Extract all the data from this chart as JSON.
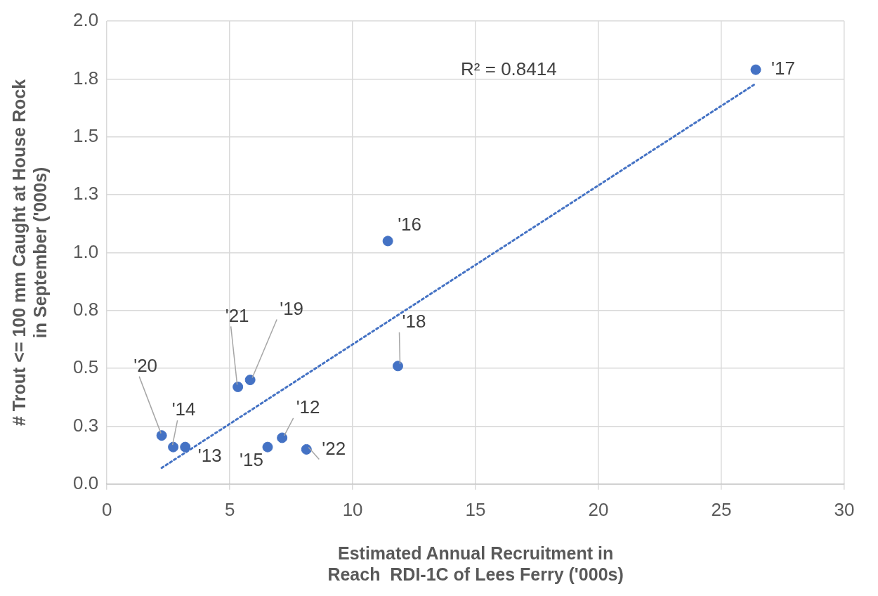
{
  "chart_data": {
    "type": "scatter",
    "xlabel": [
      "Estimated Annual Recruitment in",
      "Reach  RDI-1C of Lees Ferry ('000s)"
    ],
    "ylabel": [
      "# Trout <= 100 mm Caught at House Rock",
      "in September ('000s)"
    ],
    "x": [
      26.4,
      11.43,
      11.84,
      5.83,
      5.33,
      2.23,
      2.7,
      3.19,
      6.54,
      7.13,
      8.12
    ],
    "series": [
      {
        "color": "#4472c4",
        "values": [
          1.79,
          1.05,
          0.51,
          0.45,
          0.42,
          0.21,
          0.16,
          0.16,
          0.16,
          0.2,
          0.15
        ]
      },
      {
        "type": "line",
        "color": "#4472c4",
        "line_style": "dotted",
        "marker": "none",
        "x": [
          2.23,
          26.4
        ],
        "values": [
          0.07,
          1.73
        ]
      }
    ],
    "marker": "circle",
    "xlim": [
      0,
      30
    ],
    "xticks": [
      0,
      5,
      10,
      15,
      20,
      25,
      30
    ],
    "ylim": [
      0,
      2
    ],
    "yticks": [
      {
        "value": 0,
        "label": "0.0"
      },
      {
        "value": 0.25,
        "label": "0.3"
      },
      {
        "value": 0.5,
        "label": "0.5"
      },
      {
        "value": 0.75,
        "label": "0.8"
      },
      {
        "value": 1,
        "label": "1.0"
      },
      {
        "value": 1.25,
        "label": "1.3"
      },
      {
        "value": 1.5,
        "label": "1.5"
      },
      {
        "value": 1.75,
        "label": "1.8"
      },
      {
        "value": 2,
        "label": "2.0"
      }
    ],
    "grid": true,
    "legend": false,
    "annotations": [
      {
        "text": "'17",
        "x": 26.4,
        "y": 1.79
      },
      {
        "text": "'16",
        "x": 11.43,
        "y": 1.05
      },
      {
        "text": "'18",
        "x": 11.84,
        "y": 0.51
      },
      {
        "text": "'19",
        "x": 5.83,
        "y": 0.45
      },
      {
        "text": "'21",
        "x": 5.33,
        "y": 0.42
      },
      {
        "text": "'20",
        "x": 2.23,
        "y": 0.21
      },
      {
        "text": "'14",
        "x": 2.7,
        "y": 0.16
      },
      {
        "text": "'13",
        "x": 3.19,
        "y": 0.16
      },
      {
        "text": "'15",
        "x": 6.54,
        "y": 0.16
      },
      {
        "text": "'12",
        "x": 7.13,
        "y": 0.2
      },
      {
        "text": "'22",
        "x": 8.12,
        "y": 0.15
      },
      "R² = 0.8414"
    ]
  }
}
